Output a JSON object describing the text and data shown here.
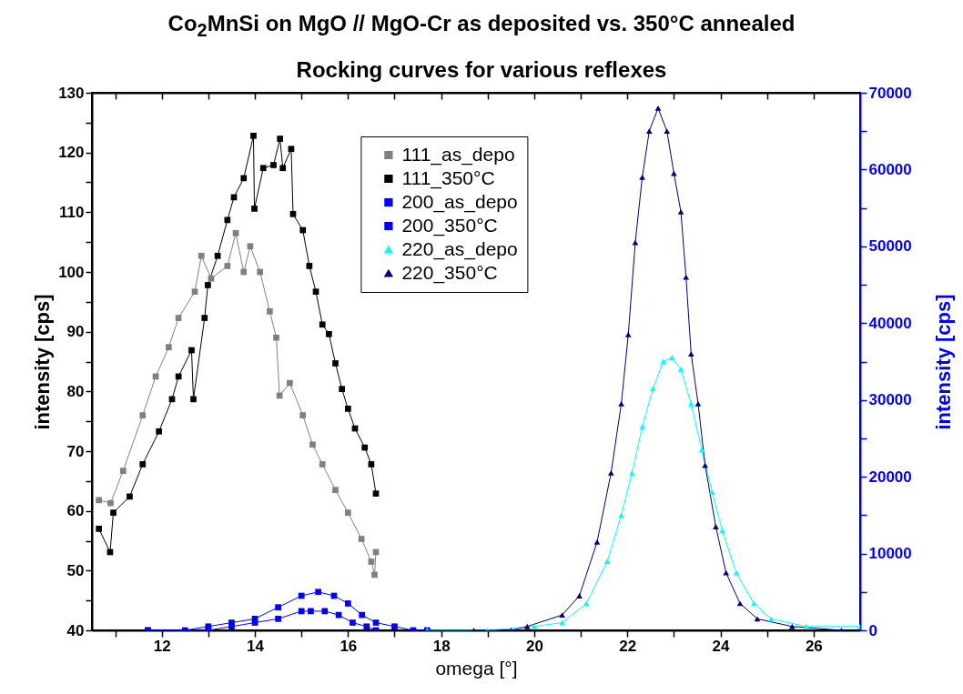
{
  "chart_data": {
    "type": "line",
    "title": "Co$_{2}$MnSi on MgO // MgO-Cr as deposited vs. 350°C annealed",
    "subtitle": "Rocking curves for various reflexes",
    "xlabel": "omega [°]",
    "ylabel": "intensity [cps]",
    "y2label": "intensity [cps]",
    "legend": "top",
    "xlim": [
      10.5,
      27
    ],
    "xticks": [
      {
        "value": 11,
        "label": null
      },
      12,
      {
        "value": 13,
        "label": null
      },
      14,
      {
        "value": 15,
        "label": null
      },
      16,
      {
        "value": 17,
        "label": null
      },
      18,
      {
        "value": 19,
        "label": null
      },
      20,
      {
        "value": 21,
        "label": null
      },
      22,
      {
        "value": 23,
        "label": null
      },
      24,
      {
        "value": 25,
        "label": null
      },
      26
    ],
    "ylim": [
      40,
      130
    ],
    "yticks": [
      40,
      {
        "value": 45,
        "label": null
      },
      50,
      {
        "value": 55,
        "label": null
      },
      60,
      {
        "value": 65,
        "label": null
      },
      70,
      {
        "value": 75,
        "label": null
      },
      80,
      {
        "value": 85,
        "label": null
      },
      90,
      {
        "value": 95,
        "label": null
      },
      100,
      {
        "value": 105,
        "label": null
      },
      110,
      {
        "value": 115,
        "label": null
      },
      120,
      {
        "value": 125,
        "label": null
      },
      130
    ],
    "y2lim": [
      0,
      70000
    ],
    "y2ticks": [
      0,
      {
        "value": 5000,
        "label": null
      },
      10000,
      {
        "value": 15000,
        "label": null
      },
      20000,
      {
        "value": 25000,
        "label": null
      },
      30000,
      {
        "value": 35000,
        "label": null
      },
      40000,
      {
        "value": 45000,
        "label": null
      },
      50000,
      {
        "value": 55000,
        "label": null
      },
      60000,
      {
        "value": 65000,
        "label": null
      },
      70000
    ],
    "series": [
      {
        "name": "111_as_depo",
        "color": "#808080",
        "marker": "square",
        "x": [
          10.65,
          10.9,
          11.17,
          11.59,
          11.87,
          12.15,
          12.36,
          12.71,
          12.85,
          13.06,
          13.41,
          13.59,
          13.76,
          13.9,
          14.11,
          14.32,
          14.46,
          14.53,
          14.75,
          15.03,
          15.24,
          15.45,
          15.73,
          16.0,
          16.29,
          16.5,
          16.57,
          16.6
        ],
        "values": [
          61.8,
          61.3,
          66.7,
          76,
          82.5,
          87.4,
          92.3,
          96.7,
          102.7,
          98.9,
          101,
          106.5,
          100,
          104.3,
          100,
          93.4,
          89,
          79.3,
          81.4,
          76,
          71.1,
          67.8,
          63.5,
          59.7,
          55.3,
          51.5,
          49.3,
          53.1
        ]
      },
      {
        "name": "111_350°C",
        "color": "#000000",
        "marker": "square",
        "x": [
          10.65,
          10.89,
          10.96,
          11.31,
          11.59,
          11.94,
          12.22,
          12.36,
          12.64,
          12.68,
          12.92,
          12.99,
          13.2,
          13.41,
          13.55,
          13.76,
          13.97,
          13.99,
          14.18,
          14.4,
          14.54,
          14.6,
          14.78,
          14.82,
          15.03,
          15.17,
          15.31,
          15.45,
          15.59,
          15.73,
          15.87,
          16.0,
          16.15,
          16.36,
          16.5,
          16.6
        ],
        "values": [
          57,
          53.1,
          59.7,
          62.4,
          67.8,
          73.3,
          78.7,
          82.5,
          86.9,
          78.7,
          92.3,
          97.8,
          102.7,
          108.7,
          112.5,
          115.7,
          122.8,
          110.6,
          117.4,
          117.9,
          122.3,
          117.4,
          120.6,
          109.7,
          107,
          101,
          96.7,
          91.2,
          89.6,
          84.7,
          80.4,
          77.1,
          73.8,
          70.6,
          67.8,
          62.9
        ]
      },
      {
        "name": "200_as_depo",
        "color": "#0000ff",
        "marker": "square",
        "axis": "y2",
        "x": [
          11.7,
          13.0,
          13.5,
          14.0,
          14.5,
          15.0,
          15.2,
          15.5,
          15.8,
          16.1,
          16.4,
          16.6
        ],
        "values": [
          0,
          0,
          500,
          1000,
          1500,
          2500,
          2500,
          2500,
          2000,
          1000,
          500,
          0
        ]
      },
      {
        "name": "200_350°C",
        "color": "#0000ff",
        "marker": "square",
        "axis": "y2",
        "x": [
          11.7,
          12.5,
          13.0,
          13.5,
          14.0,
          14.5,
          15.0,
          15.36,
          15.7,
          16.0,
          16.3,
          16.6,
          17.0,
          17.4,
          17.7
        ],
        "values": [
          0,
          0,
          500,
          1000,
          1500,
          3000,
          4500,
          5000,
          4500,
          3500,
          2000,
          1000,
          500,
          0,
          0
        ]
      },
      {
        "name": "220_as_depo",
        "color": "#00ffff",
        "marker": "triangle",
        "axis": "y2",
        "x": [
          17.7,
          19.0,
          20.0,
          20.6,
          21.12,
          21.57,
          21.87,
          22.1,
          22.32,
          22.55,
          22.77,
          22.96,
          23.15,
          23.37,
          23.6,
          23.82,
          24.04,
          24.34,
          24.72,
          25.09,
          25.84,
          27.0
        ],
        "values": [
          0,
          0,
          500,
          1000,
          3500,
          9000,
          15000,
          20500,
          26500,
          31500,
          35000,
          35500,
          34000,
          29500,
          23500,
          18000,
          13000,
          7500,
          3500,
          1500,
          500,
          500
        ]
      },
      {
        "name": "220_350°C",
        "color": "#000080",
        "marker": "triangle",
        "axis": "y2",
        "x": [
          18.7,
          19.5,
          19.85,
          20.6,
          20.97,
          21.35,
          21.65,
          21.87,
          22.02,
          22.17,
          22.32,
          22.47,
          22.66,
          22.85,
          23.0,
          23.15,
          23.26,
          23.37,
          23.52,
          23.67,
          23.9,
          24.12,
          24.42,
          24.79,
          25.54,
          26.6
        ],
        "values": [
          0,
          0,
          500,
          2000,
          4500,
          11500,
          20500,
          29500,
          38500,
          50500,
          59000,
          65000,
          68000,
          65000,
          59500,
          54500,
          46000,
          36000,
          29500,
          21500,
          13500,
          7500,
          3500,
          1500,
          500,
          0
        ]
      }
    ]
  }
}
